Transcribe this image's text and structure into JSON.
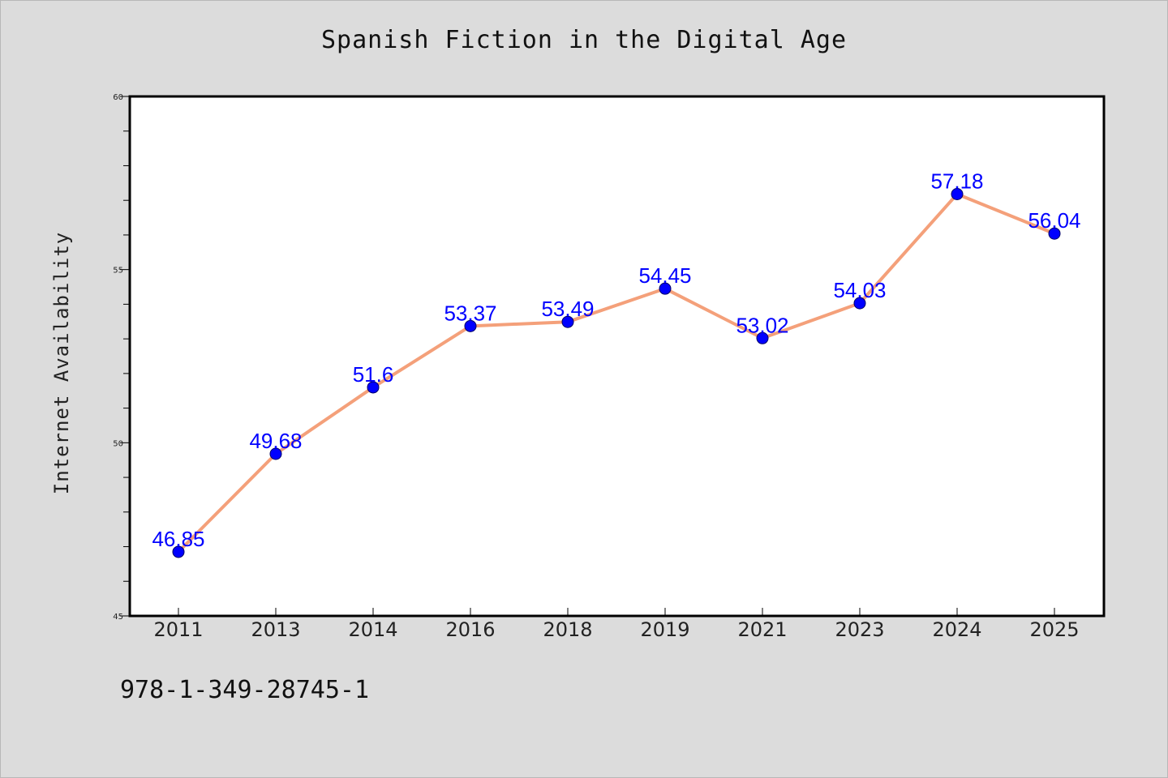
{
  "isbn": "978-1-349-28745-1",
  "chart_data": {
    "type": "line",
    "title": "Spanish Fiction in the Digital Age",
    "xlabel": "",
    "ylabel": "Internet Availability",
    "categories": [
      "2011",
      "2013",
      "2014",
      "2016",
      "2018",
      "2019",
      "2021",
      "2023",
      "2024",
      "2025"
    ],
    "series": [
      {
        "values": [
          46.85,
          49.68,
          51.6,
          53.37,
          53.49,
          54.45,
          53.02,
          54.03,
          57.18,
          56.04
        ],
        "labels": [
          "46.85",
          "49.68",
          "51.6",
          "53.37",
          "53.49",
          "54.45",
          "53.02",
          "54.03",
          "57.18",
          "56.04"
        ]
      }
    ],
    "ylim": [
      45,
      60
    ],
    "yticks": [
      45,
      50,
      55,
      60
    ],
    "grid": false,
    "legend": "none",
    "colors": {
      "line": "#f4a07a",
      "marker": "#0000ff",
      "label": "#0000ff",
      "background": "#dcdcdc",
      "plot_background": "#ffffff"
    }
  }
}
